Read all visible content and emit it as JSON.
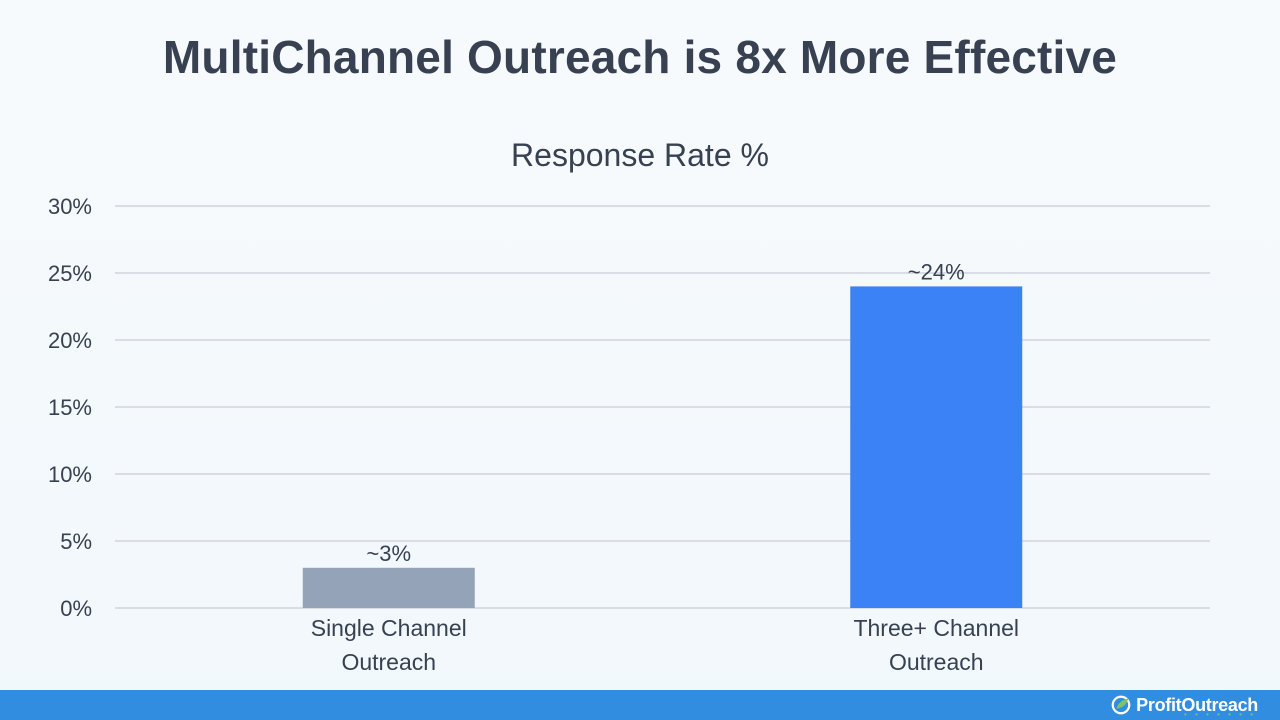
{
  "page": {
    "headline": "MultiChannel Outreach is 8x More Effective"
  },
  "chart_data": {
    "type": "bar",
    "title": "Response Rate %",
    "categories": [
      [
        "Single Channel",
        "Outreach"
      ],
      [
        "Three+ Channel",
        "Outreach"
      ]
    ],
    "values": [
      3,
      24
    ],
    "data_labels": [
      "~3%",
      "~24%"
    ],
    "bar_colors": [
      "#94a3b8",
      "#3b82f6"
    ],
    "ylim": [
      0,
      30
    ],
    "yticks": [
      0,
      5,
      10,
      15,
      20,
      25,
      30
    ],
    "ytick_labels": [
      "0%",
      "5%",
      "10%",
      "15%",
      "20%",
      "25%",
      "30%"
    ],
    "xlabel": "",
    "ylabel": "",
    "grid": true,
    "legend": "none"
  },
  "footer": {
    "brand_name": "ProfitOutreach",
    "brand_color": "#318ddf",
    "accent_color": "#7cc36a"
  }
}
